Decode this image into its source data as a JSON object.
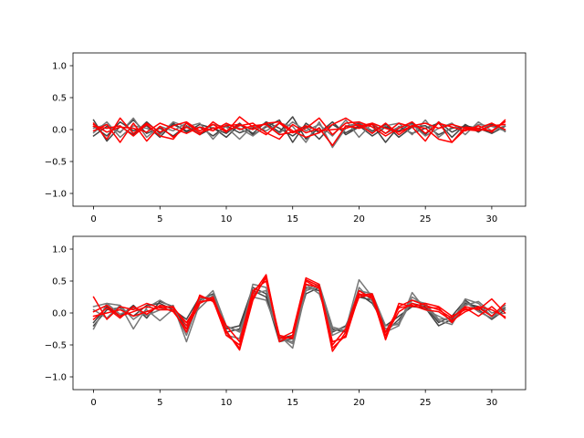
{
  "chart_data": [
    {
      "type": "line",
      "xlim": [
        -1.55,
        32.55
      ],
      "ylim": [
        -1.2,
        1.2
      ],
      "xticks": [
        0,
        5,
        10,
        15,
        20,
        25,
        30
      ],
      "xtick_labels": [
        "0",
        "5",
        "10",
        "15",
        "20",
        "25",
        "30"
      ],
      "yticks": [
        1.0,
        0.5,
        0.0,
        -0.5,
        -1.0
      ],
      "ytick_labels": [
        "1.0",
        "0.5",
        "0.0",
        "−0.5",
        "−1.0"
      ],
      "grid": false,
      "x": [
        0,
        1,
        2,
        3,
        4,
        5,
        6,
        7,
        8,
        9,
        10,
        11,
        12,
        13,
        14,
        15,
        16,
        17,
        18,
        19,
        20,
        21,
        22,
        23,
        24,
        25,
        26,
        27,
        28,
        29,
        30,
        31
      ],
      "series": [
        {
          "color": "#444444",
          "values": [
            0.15,
            -0.18,
            0.05,
            -0.08,
            0.12,
            -0.06,
            0.08,
            -0.02,
            0.04,
            -0.1,
            0.06,
            -0.05,
            0.02,
            0.1,
            -0.04,
            0.2,
            -0.15,
            0.03,
            -0.25,
            0.05,
            0.1,
            -0.02,
            0.08,
            -0.12,
            0.04,
            0.06,
            -0.08,
            0.02,
            0.05,
            -0.03,
            0.08,
            -0.02
          ]
        },
        {
          "color": "#444444",
          "values": [
            -0.1,
            0.05,
            -0.04,
            0.15,
            -0.06,
            0.02,
            -0.1,
            0.06,
            -0.08,
            0.03,
            -0.12,
            0.08,
            -0.06,
            0.12,
            0.02,
            -0.1,
            0.05,
            -0.15,
            0.08,
            -0.05,
            0.06,
            -0.1,
            0.04,
            -0.02,
            0.1,
            -0.08,
            0.12,
            -0.04,
            0.06,
            0.02,
            -0.06,
            0.05
          ]
        },
        {
          "color": "#444444",
          "values": [
            0.05,
            -0.1,
            0.12,
            -0.02,
            0.06,
            -0.12,
            0.1,
            -0.04,
            0.08,
            0.02,
            -0.06,
            0.1,
            -0.08,
            0.04,
            0.15,
            -0.2,
            0.1,
            -0.05,
            0.12,
            -0.08,
            0.04,
            0.08,
            -0.2,
            0.05,
            -0.06,
            0.02,
            0.1,
            -0.12,
            0.08,
            -0.04,
            0.1,
            -0.03
          ]
        },
        {
          "color": "#777777",
          "values": [
            0.02,
            0.08,
            -0.05,
            0.18,
            -0.12,
            0.05,
            -0.02,
            0.1,
            -0.06,
            0.08,
            0.04,
            -0.15,
            0.06,
            -0.02,
            0.1,
            0.05,
            -0.2,
            0.12,
            -0.28,
            0.02,
            0.12,
            -0.04,
            0.06,
            0.1,
            -0.08,
            0.15,
            -0.12,
            0.04,
            -0.02,
            0.08,
            0.05,
            -0.02
          ]
        },
        {
          "color": "#777777",
          "values": [
            -0.05,
            0.12,
            -0.12,
            0.06,
            0.02,
            -0.08,
            0.12,
            0.04,
            0.1,
            -0.15,
            0.08,
            0.02,
            -0.1,
            0.06,
            -0.06,
            0.12,
            -0.02,
            0.08,
            -0.1,
            0.15,
            -0.12,
            0.1,
            -0.06,
            0.04,
            0.08,
            -0.1,
            0.02,
            0.1,
            -0.08,
            0.12,
            -0.02,
            0.06
          ]
        },
        {
          "color": "#ff0000",
          "values": [
            0.1,
            -0.15,
            0.18,
            -0.06,
            0.1,
            -0.04,
            0.06,
            0.12,
            -0.02,
            0.08,
            -0.04,
            0.2,
            0.04,
            -0.08,
            0.1,
            -0.05,
            0.02,
            0.18,
            -0.08,
            0.1,
            0.12,
            0.04,
            -0.1,
            0.02,
            0.12,
            -0.06,
            0.1,
            0.04,
            -0.02,
            0.06,
            -0.04,
            0.15
          ]
        },
        {
          "color": "#ff0000",
          "values": [
            -0.02,
            0.08,
            -0.2,
            0.1,
            -0.18,
            0.05,
            -0.12,
            0.04,
            -0.08,
            0.12,
            -0.02,
            0.06,
            0.1,
            -0.05,
            -0.15,
            0.08,
            -0.05,
            0.02,
            -0.25,
            0.06,
            0.02,
            0.08,
            -0.06,
            0.1,
            0.04,
            -0.18,
            0.12,
            -0.2,
            0.04,
            0.02,
            0.1,
            0.0
          ]
        },
        {
          "color": "#ff0000",
          "values": [
            0.05,
            0.02,
            0.06,
            -0.1,
            0.08,
            -0.1,
            -0.15,
            0.1,
            -0.05,
            0.02,
            0.06,
            0.08,
            0.0,
            0.1,
            0.12,
            -0.02,
            -0.12,
            -0.05,
            0.08,
            0.18,
            0.05,
            0.1,
            0.02,
            -0.04,
            0.06,
            0.02,
            -0.15,
            -0.2,
            0.0,
            -0.02,
            0.06,
            0.08
          ]
        },
        {
          "color": "#ff0000",
          "values": [
            0.08,
            -0.04,
            0.04,
            0.02,
            -0.04,
            0.1,
            0.02,
            -0.06,
            0.04,
            -0.02,
            0.1,
            0.0,
            0.06,
            0.08,
            -0.08,
            -0.04,
            0.06,
            -0.02,
            0.0,
            0.02,
            0.08,
            -0.06,
            0.1,
            -0.08,
            0.06,
            0.1,
            0.02,
            0.08,
            0.02,
            0.0,
            -0.02,
            0.12
          ]
        }
      ]
    },
    {
      "type": "line",
      "xlim": [
        -1.55,
        32.55
      ],
      "ylim": [
        -1.2,
        1.2
      ],
      "xticks": [
        0,
        5,
        10,
        15,
        20,
        25,
        30
      ],
      "xtick_labels": [
        "0",
        "5",
        "10",
        "15",
        "20",
        "25",
        "30"
      ],
      "yticks": [
        1.0,
        0.5,
        0.0,
        -0.5,
        -1.0
      ],
      "ytick_labels": [
        "1.0",
        "0.5",
        "0.0",
        "−0.5",
        "−1.0"
      ],
      "grid": false,
      "x": [
        0,
        1,
        2,
        3,
        4,
        5,
        6,
        7,
        8,
        9,
        10,
        11,
        12,
        13,
        14,
        15,
        16,
        17,
        18,
        19,
        20,
        21,
        22,
        23,
        24,
        25,
        26,
        27,
        28,
        29,
        30,
        31
      ],
      "series": [
        {
          "color": "#444444",
          "values": [
            -0.15,
            0.1,
            -0.05,
            0.12,
            -0.08,
            0.18,
            0.1,
            -0.25,
            0.2,
            0.3,
            -0.25,
            -0.2,
            0.4,
            0.3,
            -0.4,
            -0.35,
            0.4,
            0.35,
            -0.3,
            -0.2,
            0.25,
            0.2,
            -0.3,
            -0.1,
            0.15,
            0.1,
            -0.15,
            -0.05,
            0.2,
            0.05,
            -0.1,
            0.05
          ]
        },
        {
          "color": "#444444",
          "values": [
            -0.2,
            0.05,
            0.08,
            -0.05,
            0.12,
            0.15,
            0.05,
            -0.1,
            0.25,
            0.2,
            -0.3,
            -0.25,
            0.35,
            0.25,
            -0.45,
            -0.4,
            0.3,
            0.4,
            -0.25,
            -0.3,
            0.3,
            0.15,
            -0.2,
            -0.05,
            0.1,
            0.08,
            -0.2,
            -0.1,
            0.15,
            0.1,
            -0.05,
            0.08
          ]
        },
        {
          "color": "#777777",
          "values": [
            -0.25,
            0.15,
            -0.02,
            0.08,
            -0.04,
            0.05,
            0.12,
            -0.45,
            0.15,
            0.35,
            -0.2,
            -0.3,
            0.25,
            0.2,
            -0.35,
            -0.55,
            0.35,
            0.42,
            -0.35,
            -0.25,
            0.52,
            0.25,
            -0.3,
            -0.2,
            0.32,
            0.05,
            -0.05,
            -0.15,
            0.22,
            0.15,
            -0.05,
            0.0
          ]
        },
        {
          "color": "#777777",
          "values": [
            0.1,
            0.15,
            0.12,
            -0.25,
            0.08,
            0.2,
            0.08,
            -0.35,
            0.22,
            0.25,
            -0.35,
            -0.4,
            0.45,
            0.4,
            -0.42,
            -0.45,
            0.45,
            0.3,
            -0.28,
            -0.22,
            0.35,
            0.3,
            -0.2,
            -0.18,
            0.2,
            0.15,
            -0.1,
            -0.08,
            0.12,
            0.18,
            0.0,
            0.05
          ]
        },
        {
          "color": "#777777",
          "values": [
            0.05,
            -0.08,
            0.12,
            -0.1,
            0.05,
            -0.12,
            0.06,
            -0.15,
            0.08,
            0.28,
            -0.22,
            -0.28,
            0.3,
            0.35,
            -0.38,
            -0.48,
            0.38,
            0.45,
            -0.22,
            -0.28,
            0.4,
            0.18,
            -0.25,
            -0.15,
            0.25,
            0.12,
            -0.12,
            -0.18,
            0.18,
            0.02,
            -0.08,
            0.12
          ]
        },
        {
          "color": "#ff0000",
          "values": [
            0.25,
            -0.1,
            0.1,
            0.05,
            0.15,
            0.08,
            0.1,
            -0.2,
            0.25,
            0.22,
            -0.3,
            -0.55,
            0.3,
            0.6,
            -0.4,
            -0.3,
            0.55,
            0.45,
            -0.55,
            -0.35,
            0.3,
            0.25,
            -0.4,
            0.1,
            0.2,
            0.12,
            0.05,
            -0.08,
            0.1,
            0.05,
            0.22,
            0.0
          ]
        },
        {
          "color": "#ff0000",
          "values": [
            -0.1,
            0.08,
            -0.08,
            0.1,
            -0.02,
            0.12,
            0.08,
            -0.15,
            0.18,
            0.2,
            -0.35,
            -0.5,
            0.25,
            0.55,
            -0.45,
            -0.35,
            0.45,
            0.4,
            -0.6,
            -0.3,
            0.25,
            0.28,
            -0.42,
            0.15,
            0.1,
            0.15,
            0.1,
            -0.05,
            0.05,
            0.08,
            -0.05,
            0.15
          ]
        },
        {
          "color": "#ff0000",
          "values": [
            0.02,
            0.12,
            -0.05,
            0.02,
            0.1,
            0.05,
            0.05,
            -0.3,
            0.28,
            0.18,
            -0.2,
            -0.45,
            0.35,
            0.5,
            -0.35,
            -0.4,
            0.5,
            0.38,
            -0.5,
            -0.25,
            0.35,
            0.22,
            -0.35,
            0.02,
            0.15,
            0.08,
            0.08,
            -0.15,
            0.08,
            -0.05,
            0.1,
            -0.08
          ]
        },
        {
          "color": "#ff0000",
          "values": [
            -0.05,
            0.0,
            0.05,
            -0.05,
            0.02,
            0.1,
            0.02,
            -0.25,
            0.15,
            0.25,
            -0.28,
            -0.58,
            0.2,
            0.58,
            -0.4,
            -0.38,
            0.52,
            0.42,
            -0.45,
            -0.38,
            0.28,
            0.3,
            -0.3,
            0.08,
            0.12,
            0.05,
            0.02,
            -0.12,
            0.02,
            0.1,
            0.05,
            -0.06
          ]
        }
      ]
    }
  ]
}
